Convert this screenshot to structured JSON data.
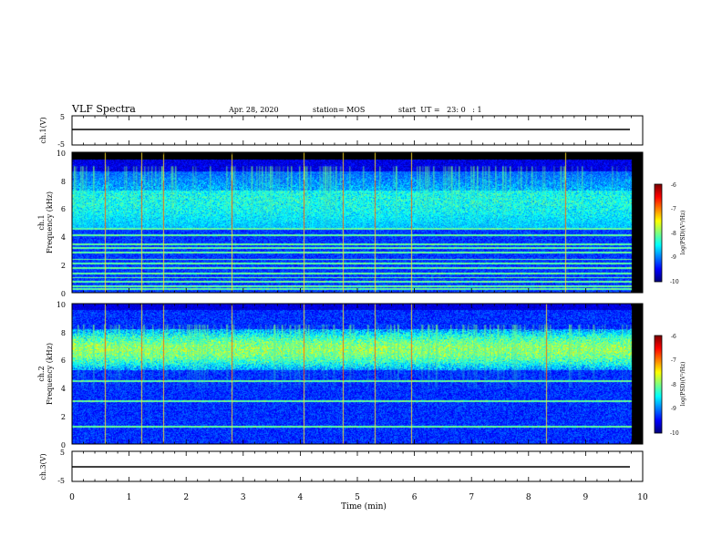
{
  "header": {
    "title": "VLF Spectra",
    "date": "Apr. 28, 2020",
    "station": "station= MOS",
    "start": "start  UT =   23: 0   : 1"
  },
  "chart_data": [
    {
      "type": "line",
      "panel": "ch1-waveform",
      "ylabel": "ch.1(V)",
      "ylim": [
        -5,
        5
      ],
      "yticks": [
        "5",
        "-5"
      ],
      "x": [
        0,
        9.8
      ],
      "values": [
        0,
        0
      ]
    },
    {
      "type": "heatmap",
      "panel": "ch1-spectrogram",
      "ylabel_line1": "ch.1",
      "ylabel_line2": "Frequency  (kHz)",
      "ylim": [
        0,
        10
      ],
      "yticks": [
        "0",
        "2",
        "4",
        "6",
        "8",
        "10"
      ],
      "xlim": [
        0,
        9.8
      ],
      "band_khz": [
        4.5,
        8.7
      ],
      "colorbar": {
        "label": "log(PSD)(V²/Hz)",
        "ticks": [
          "-6",
          "-7",
          "-8",
          "-9",
          "-10"
        ],
        "range": [
          -10,
          -6
        ]
      },
      "spikes_min": [
        0.57,
        1.22,
        1.6,
        2.8,
        4.05,
        4.75,
        5.3,
        5.95,
        8.65
      ]
    },
    {
      "type": "heatmap",
      "panel": "ch2-spectrogram",
      "ylabel_line1": "ch.2",
      "ylabel_line2": "Frequency  (kHz)",
      "ylim": [
        0,
        10
      ],
      "yticks": [
        "0",
        "2",
        "4",
        "6",
        "8",
        "10"
      ],
      "xlim": [
        0,
        9.8
      ],
      "band_khz": [
        5.5,
        8.0
      ],
      "colorbar": {
        "label": "log(PSD)(V²/Hz)",
        "ticks": [
          "-6",
          "-7",
          "-8",
          "-9",
          "-10"
        ],
        "range": [
          -10,
          -6
        ]
      },
      "spikes_min": [
        0.57,
        1.22,
        1.6,
        2.8,
        4.05,
        4.75,
        5.3,
        5.95,
        8.3
      ]
    },
    {
      "type": "line",
      "panel": "ch3-waveform",
      "ylabel": "ch.3(V)",
      "ylim": [
        -5,
        5
      ],
      "yticks": [
        "5",
        "-5"
      ],
      "x": [
        0,
        9.8
      ],
      "values": [
        0,
        0
      ]
    }
  ],
  "xaxis": {
    "label": "Time  (min)",
    "ticks": [
      "0",
      "1",
      "2",
      "3",
      "4",
      "5",
      "6",
      "7",
      "8",
      "9",
      "10"
    ],
    "xlim": [
      0,
      10
    ]
  }
}
